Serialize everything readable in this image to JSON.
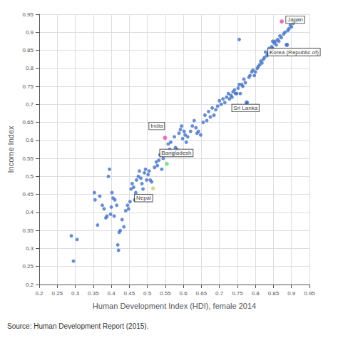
{
  "chart_data": {
    "type": "scatter",
    "xlabel": "Human Development Index (HDI), female 2014",
    "ylabel": "Income Index",
    "source": "Source: Human Development Report (2015).",
    "xlim": [
      0.2,
      0.95
    ],
    "ylim": [
      0.2,
      0.95
    ],
    "xticks": [
      0.2,
      0.25,
      0.3,
      0.35,
      0.4,
      0.45,
      0.5,
      0.55,
      0.6,
      0.65,
      0.7,
      0.75,
      0.8,
      0.85,
      0.9,
      0.95
    ],
    "yticks": [
      0.2,
      0.25,
      0.3,
      0.35,
      0.4,
      0.45,
      0.5,
      0.55,
      0.6,
      0.65,
      0.7,
      0.75,
      0.8,
      0.85,
      0.9,
      0.95
    ],
    "grid": true,
    "color": "#4472C4",
    "x": [
      0.289,
      0.295,
      0.305,
      0.353,
      0.355,
      0.362,
      0.368,
      0.375,
      0.38,
      0.385,
      0.388,
      0.392,
      0.395,
      0.398,
      0.4,
      0.402,
      0.405,
      0.408,
      0.41,
      0.415,
      0.418,
      0.42,
      0.422,
      0.425,
      0.43,
      0.435,
      0.44,
      0.445,
      0.448,
      0.452,
      0.455,
      0.458,
      0.462,
      0.465,
      0.468,
      0.47,
      0.475,
      0.478,
      0.482,
      0.485,
      0.488,
      0.492,
      0.495,
      0.498,
      0.502,
      0.505,
      0.508,
      0.512,
      0.516,
      0.52,
      0.525,
      0.528,
      0.532,
      0.535,
      0.54,
      0.544,
      0.549,
      0.554,
      0.558,
      0.562,
      0.565,
      0.57,
      0.575,
      0.578,
      0.582,
      0.588,
      0.592,
      0.595,
      0.598,
      0.602,
      0.605,
      0.608,
      0.612,
      0.62,
      0.625,
      0.63,
      0.635,
      0.638,
      0.642,
      0.648,
      0.655,
      0.66,
      0.665,
      0.67,
      0.675,
      0.68,
      0.685,
      0.69,
      0.695,
      0.7,
      0.705,
      0.71,
      0.715,
      0.72,
      0.725,
      0.728,
      0.732,
      0.735,
      0.738,
      0.742,
      0.745,
      0.748,
      0.752,
      0.755,
      0.758,
      0.762,
      0.765,
      0.768,
      0.772,
      0.776,
      0.782,
      0.785,
      0.79,
      0.793,
      0.797,
      0.8,
      0.805,
      0.808,
      0.812,
      0.815,
      0.818,
      0.822,
      0.825,
      0.828,
      0.832,
      0.835,
      0.838,
      0.842,
      0.845,
      0.848,
      0.848,
      0.852,
      0.855,
      0.858,
      0.862,
      0.865,
      0.868,
      0.872,
      0.873,
      0.878,
      0.882,
      0.887,
      0.89,
      0.893,
      0.897,
      0.9,
      0.905,
      0.912,
      0.918,
      0.755
    ],
    "values": [
      0.335,
      0.265,
      0.325,
      0.455,
      0.435,
      0.365,
      0.445,
      0.42,
      0.41,
      0.385,
      0.39,
      0.5,
      0.52,
      0.395,
      0.415,
      0.455,
      0.44,
      0.39,
      0.435,
      0.42,
      0.31,
      0.295,
      0.345,
      0.35,
      0.38,
      0.36,
      0.405,
      0.42,
      0.41,
      0.43,
      0.465,
      0.48,
      0.47,
      0.435,
      0.455,
      0.49,
      0.5,
      0.515,
      0.495,
      0.48,
      0.465,
      0.51,
      0.52,
      0.49,
      0.505,
      0.515,
      0.49,
      0.485,
      0.467,
      0.525,
      0.54,
      0.53,
      0.545,
      0.56,
      0.52,
      0.55,
      0.607,
      0.535,
      0.59,
      0.575,
      0.595,
      0.565,
      0.61,
      0.58,
      0.575,
      0.62,
      0.63,
      0.64,
      0.605,
      0.625,
      0.615,
      0.595,
      0.61,
      0.625,
      0.64,
      0.655,
      0.635,
      0.62,
      0.625,
      0.615,
      0.65,
      0.67,
      0.655,
      0.68,
      0.665,
      0.69,
      0.67,
      0.685,
      0.695,
      0.71,
      0.7,
      0.715,
      0.705,
      0.72,
      0.73,
      0.715,
      0.725,
      0.72,
      0.735,
      0.74,
      0.73,
      0.73,
      0.745,
      0.755,
      0.73,
      0.755,
      0.75,
      0.77,
      0.76,
      0.705,
      0.775,
      0.78,
      0.79,
      0.795,
      0.78,
      0.79,
      0.8,
      0.805,
      0.81,
      0.82,
      0.815,
      0.825,
      0.83,
      0.845,
      0.835,
      0.84,
      0.855,
      0.845,
      0.86,
      0.855,
      0.875,
      0.87,
      0.875,
      0.865,
      0.88,
      0.875,
      0.89,
      0.885,
      0.93,
      0.895,
      0.9,
      0.865,
      0.905,
      0.91,
      0.92,
      0.915,
      0.925,
      0.93,
      0.935,
      0.88
    ],
    "annotations": [
      {
        "text": "Japan",
        "x": 0.885,
        "y": 0.935,
        "point_x": 0.873,
        "point_y": 0.93,
        "color": "#ff69b4"
      },
      {
        "text": "Korea (Republic of)",
        "x": 0.835,
        "y": 0.845,
        "point_x": 0.887,
        "point_y": 0.865,
        "color": "#4472C4"
      },
      {
        "text": "Sri Lanka",
        "x": 0.735,
        "y": 0.69,
        "point_x": 0.776,
        "point_y": 0.705,
        "color": "#4472C4"
      },
      {
        "text": "India",
        "x": 0.505,
        "y": 0.64,
        "point_x": 0.549,
        "point_y": 0.607,
        "color": "#ff69b4"
      },
      {
        "text": "Bangladesh",
        "x": 0.535,
        "y": 0.565,
        "point_x": 0.554,
        "point_y": 0.535,
        "color": "#90ee90"
      },
      {
        "text": "Nepal",
        "x": 0.465,
        "y": 0.44,
        "point_x": 0.516,
        "point_y": 0.467,
        "color": "#f0e68c"
      }
    ]
  }
}
